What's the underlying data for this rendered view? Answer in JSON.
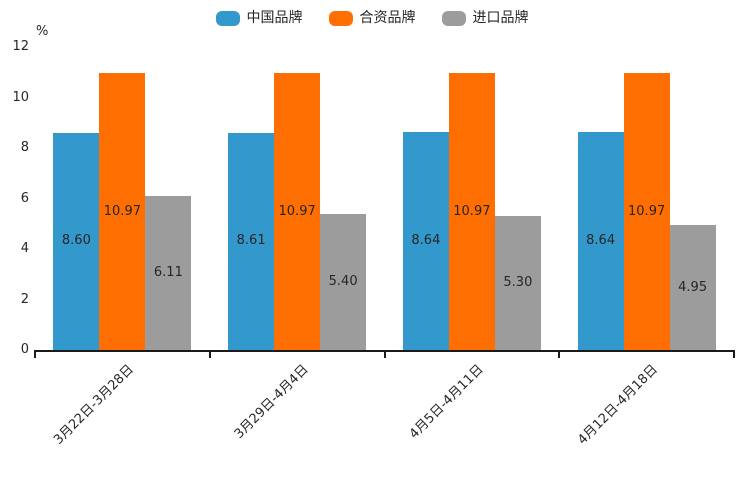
{
  "chart_data": {
    "type": "bar",
    "title": "",
    "xlabel": "",
    "ylabel": "%",
    "ylim": [
      0,
      12
    ],
    "ytick_step": 2,
    "grid": false,
    "legend_position": "top-center",
    "categories": [
      "3月22日-3月28日",
      "3月29日-4月4日",
      "4月5日-4月11日",
      "4月12日-4月18日"
    ],
    "series": [
      {
        "name": "中国品牌",
        "color": "#3398CB",
        "values": [
          8.6,
          8.61,
          8.64,
          8.64
        ],
        "labels": [
          "8.60",
          "8.61",
          "8.64",
          "8.64"
        ]
      },
      {
        "name": "合资品牌",
        "color": "#FF6E00",
        "values": [
          10.97,
          10.97,
          10.97,
          10.97
        ],
        "labels": [
          "10.97",
          "10.97",
          "10.97",
          "10.97"
        ]
      },
      {
        "name": "进口品牌",
        "color": "#9C9C9C",
        "values": [
          6.11,
          5.4,
          5.3,
          4.95
        ],
        "labels": [
          "6.11",
          "5.40",
          "5.30",
          "4.95"
        ]
      }
    ]
  },
  "style": {
    "axis_color": "#1a1a1a",
    "text_color": "#262626",
    "background": "#ffffff"
  }
}
